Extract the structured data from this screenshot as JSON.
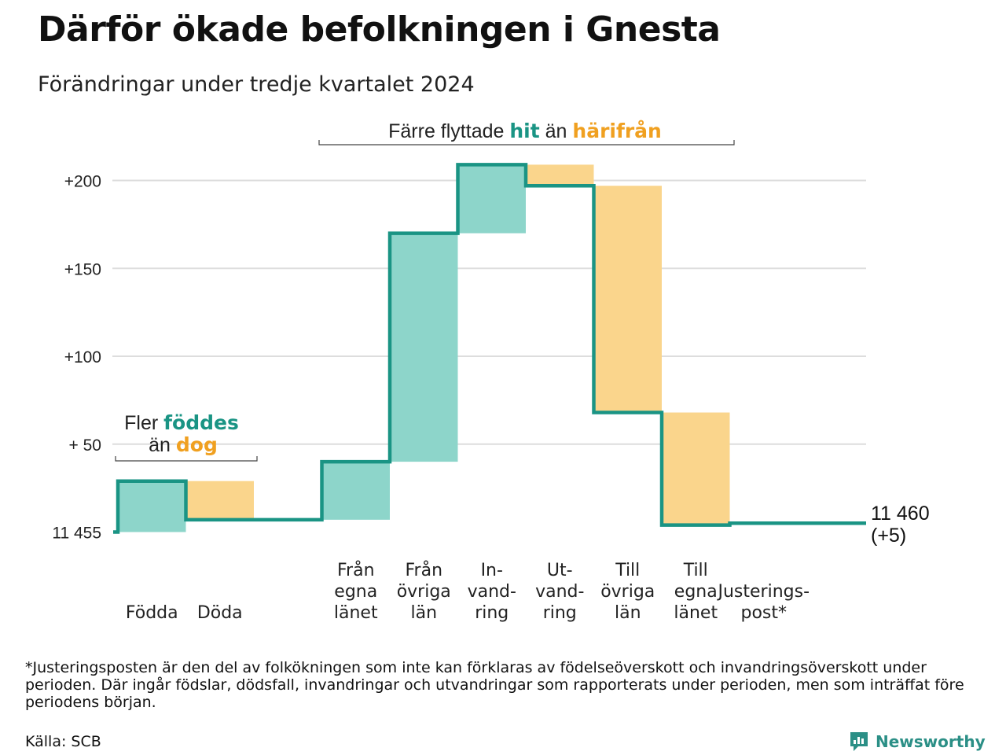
{
  "header": {
    "title": "Därför ökade befolkningen i Gnesta",
    "subtitle": "Förändringar under tredje kvartalet 2024"
  },
  "colors": {
    "increase": "#8dd5ca",
    "decrease": "#fad58c",
    "line": "#1a9484",
    "accent_green": "#1a9484",
    "accent_orange": "#f0a020",
    "grid": "#dddddd"
  },
  "annotations": {
    "births": {
      "prefix": "Fler",
      "green": "föddes",
      "line2_prefix": "än",
      "orange": "dog"
    },
    "moves": {
      "prefix": "Färre flyttade",
      "green": "hit",
      "middle": "än",
      "orange": "härifrån"
    }
  },
  "end_label": {
    "line1": "11 460",
    "line2": "(+5)"
  },
  "chart_data": {
    "type": "waterfall",
    "title": "Därför ökade befolkningen i Gnesta",
    "subtitle": "Förändringar under tredje kvartalet 2024",
    "base_value": 11455,
    "end_value": 11460,
    "end_change": 5,
    "y_ticks": [
      {
        "value": 0,
        "label": "11 455"
      },
      {
        "value": 50,
        "label": "+ 50"
      },
      {
        "value": 100,
        "label": "+100"
      },
      {
        "value": 150,
        "label": "+150"
      },
      {
        "value": 200,
        "label": "+200"
      }
    ],
    "ylim": [
      0,
      210
    ],
    "grid": true,
    "steps": [
      {
        "label_lines": [
          "Födda"
        ],
        "change": 29,
        "kind": "increase"
      },
      {
        "label_lines": [
          "Döda"
        ],
        "change": -22,
        "kind": "decrease"
      },
      {
        "label_lines": [],
        "change": 0,
        "kind": "gap"
      },
      {
        "label_lines": [
          "Från",
          "egna",
          "länet"
        ],
        "change": 33,
        "kind": "increase"
      },
      {
        "label_lines": [
          "Från",
          "övriga",
          "län"
        ],
        "change": 130,
        "kind": "increase"
      },
      {
        "label_lines": [
          "In-",
          "vand-",
          "ring"
        ],
        "change": 39,
        "kind": "increase"
      },
      {
        "label_lines": [
          "Ut-",
          "vand-",
          "ring"
        ],
        "change": -12,
        "kind": "decrease"
      },
      {
        "label_lines": [
          "Till",
          "övriga",
          "län"
        ],
        "change": -129,
        "kind": "decrease"
      },
      {
        "label_lines": [
          "Till",
          "egna",
          "länet"
        ],
        "change": -64,
        "kind": "decrease"
      },
      {
        "label_lines": [
          "Justerings-",
          "post*"
        ],
        "change": 1,
        "kind": "adjustment"
      }
    ]
  },
  "footnote": "*Justeringsposten är den del av folkökningen som inte kan förklaras av födelseöverskott och invandringsöverskott under perioden. Där ingår födslar, dödsfall, invandringar och utvandringar som rapporterats under perioden, men som inträffat före periodens början.",
  "source": "Källa: SCB",
  "brand": "Newsworthy"
}
